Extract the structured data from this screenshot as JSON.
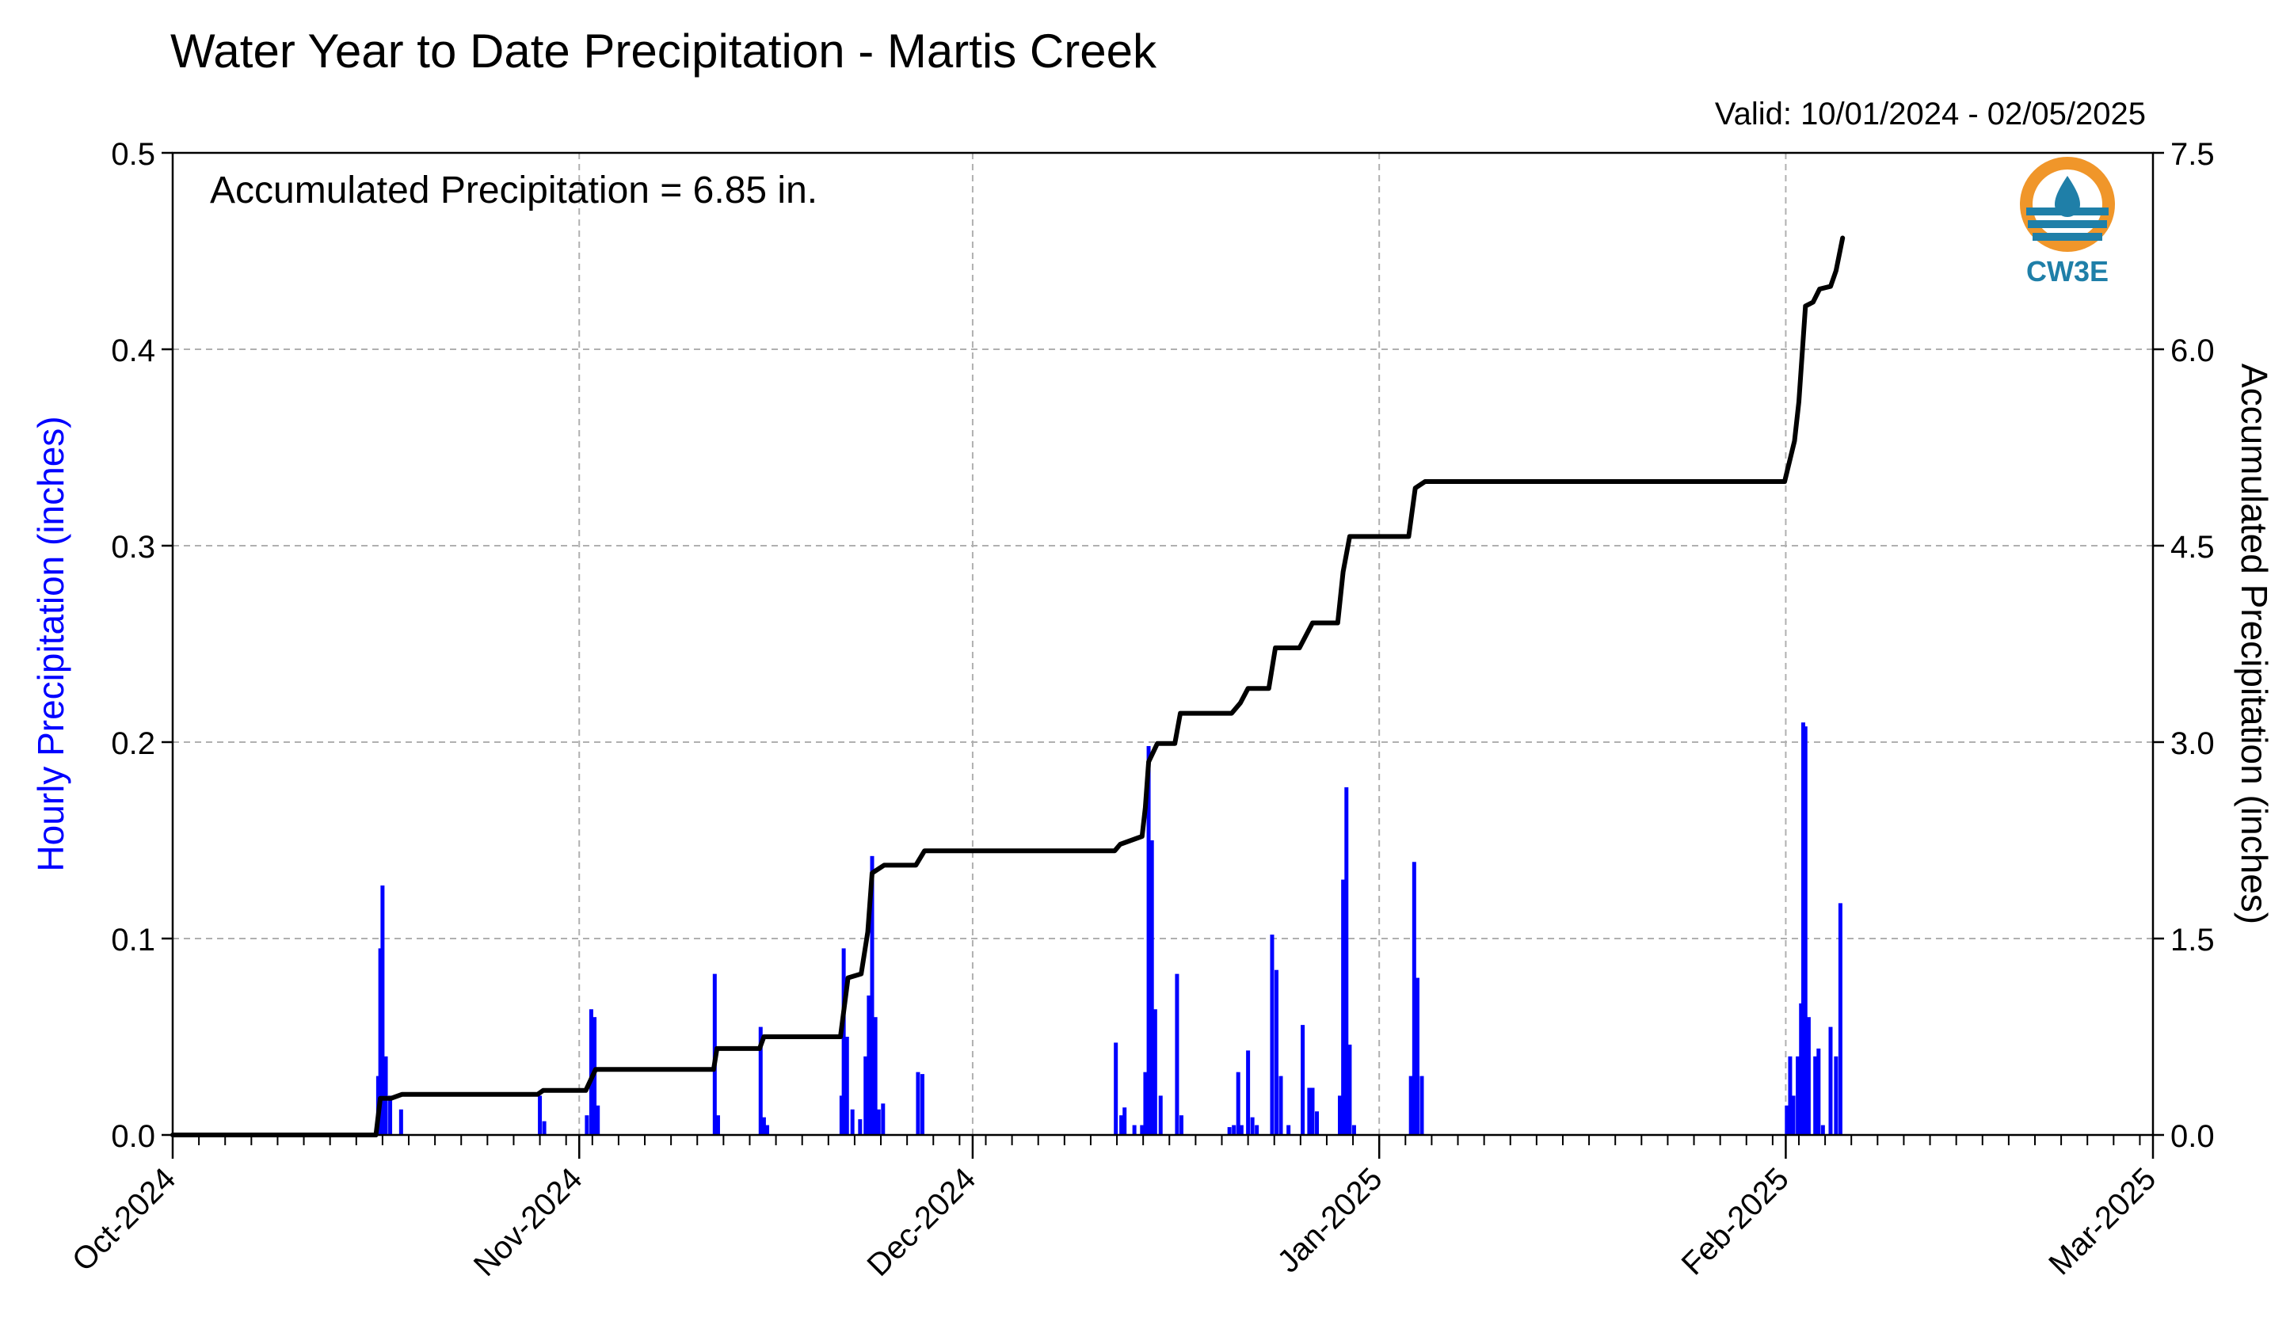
{
  "header": {
    "title": "Water Year to Date Precipitation - Martis Creek",
    "valid": "Valid: 10/01/2024 - 02/05/2025"
  },
  "annotation": "Accumulated Precipitation = 6.85 in.",
  "logo": {
    "text": "CW3E",
    "ring_color": "#f0962a",
    "water_color": "#1f7fa8"
  },
  "colors": {
    "hourly": "#0000ff",
    "accumulated": "#000000",
    "grid": "#b0b0b0"
  },
  "chart_data": {
    "type": "bar",
    "x_axis": {
      "type": "date",
      "range": [
        "2024-10-01",
        "2025-03-01"
      ],
      "tick_labels": [
        "Oct-2024",
        "Nov-2024",
        "Dec-2024",
        "Jan-2025",
        "Feb-2025",
        "Mar-2025"
      ],
      "tick_dates": [
        "2024-10-01",
        "2024-11-01",
        "2024-12-01",
        "2025-01-01",
        "2025-02-01",
        "2025-03-01"
      ],
      "minor_ticks": "every 2 days"
    },
    "y_left": {
      "label": "Hourly Precipitation (inches)",
      "range": [
        0,
        0.5
      ],
      "ticks": [
        "0.0",
        "0.1",
        "0.2",
        "0.3",
        "0.4",
        "0.5"
      ],
      "color": "#0000ff"
    },
    "y_right": {
      "label": "Accumulated Precipitation (inches)",
      "range": [
        0,
        7.5
      ],
      "ticks": [
        "0.0",
        "1.5",
        "3.0",
        "4.5",
        "6.0",
        "7.5"
      ]
    },
    "grid": true,
    "series": [
      {
        "kind": "hourly_bars",
        "axis": "left",
        "points": [
          [
            "2024-10-16 16:00",
            0.03
          ],
          [
            "2024-10-16 20:00",
            0.095
          ],
          [
            "2024-10-17 00:00",
            0.127
          ],
          [
            "2024-10-17 06:00",
            0.04
          ],
          [
            "2024-10-17 14:00",
            0.02
          ],
          [
            "2024-10-18 10:00",
            0.013
          ],
          [
            "2024-10-29 00:00",
            0.02
          ],
          [
            "2024-10-29 08:00",
            0.007
          ],
          [
            "2024-11-01 14:00",
            0.01
          ],
          [
            "2024-11-01 22:00",
            0.064
          ],
          [
            "2024-11-02 04:00",
            0.06
          ],
          [
            "2024-11-02 10:00",
            0.015
          ],
          [
            "2024-11-11 08:00",
            0.082
          ],
          [
            "2024-11-11 14:00",
            0.01
          ],
          [
            "2024-11-14 20:00",
            0.055
          ],
          [
            "2024-11-15 02:00",
            0.009
          ],
          [
            "2024-11-15 08:00",
            0.005
          ],
          [
            "2024-11-21 00:00",
            0.02
          ],
          [
            "2024-11-21 04:00",
            0.095
          ],
          [
            "2024-11-21 10:00",
            0.05
          ],
          [
            "2024-11-21 20:00",
            0.013
          ],
          [
            "2024-11-22 10:00",
            0.008
          ],
          [
            "2024-11-22 20:00",
            0.04
          ],
          [
            "2024-11-23 02:00",
            0.071
          ],
          [
            "2024-11-23 08:00",
            0.142
          ],
          [
            "2024-11-23 14:00",
            0.06
          ],
          [
            "2024-11-23 20:00",
            0.013
          ],
          [
            "2024-11-24 04:00",
            0.016
          ],
          [
            "2024-11-26 20:00",
            0.032
          ],
          [
            "2024-11-27 04:00",
            0.031
          ],
          [
            "2024-12-11 22:00",
            0.047
          ],
          [
            "2024-12-12 08:00",
            0.01
          ],
          [
            "2024-12-12 14:00",
            0.014
          ],
          [
            "2024-12-13 08:00",
            0.005
          ],
          [
            "2024-12-13 22:00",
            0.005
          ],
          [
            "2024-12-14 04:00",
            0.032
          ],
          [
            "2024-12-14 10:00",
            0.198
          ],
          [
            "2024-12-14 16:00",
            0.15
          ],
          [
            "2024-12-14 22:00",
            0.064
          ],
          [
            "2024-12-15 08:00",
            0.02
          ],
          [
            "2024-12-16 14:00",
            0.082
          ],
          [
            "2024-12-16 22:00",
            0.01
          ],
          [
            "2024-12-20 14:00",
            0.004
          ],
          [
            "2024-12-20 22:00",
            0.005
          ],
          [
            "2024-12-21 06:00",
            0.032
          ],
          [
            "2024-12-21 12:00",
            0.005
          ],
          [
            "2024-12-22 00:00",
            0.043
          ],
          [
            "2024-12-22 08:00",
            0.009
          ],
          [
            "2024-12-22 16:00",
            0.005
          ],
          [
            "2024-12-23 20:00",
            0.102
          ],
          [
            "2024-12-24 04:00",
            0.084
          ],
          [
            "2024-12-24 12:00",
            0.03
          ],
          [
            "2024-12-25 02:00",
            0.005
          ],
          [
            "2024-12-26 04:00",
            0.056
          ],
          [
            "2024-12-26 16:00",
            0.024
          ],
          [
            "2024-12-26 22:00",
            0.024
          ],
          [
            "2024-12-27 06:00",
            0.012
          ],
          [
            "2024-12-29 00:00",
            0.02
          ],
          [
            "2024-12-29 06:00",
            0.13
          ],
          [
            "2024-12-29 12:00",
            0.177
          ],
          [
            "2024-12-29 18:00",
            0.046
          ],
          [
            "2024-12-30 02:00",
            0.005
          ],
          [
            "2025-01-03 10:00",
            0.03
          ],
          [
            "2025-01-03 16:00",
            0.139
          ],
          [
            "2025-01-03 22:00",
            0.08
          ],
          [
            "2025-01-04 06:00",
            0.03
          ],
          [
            "2025-02-01 02:00",
            0.015
          ],
          [
            "2025-02-01 08:00",
            0.04
          ],
          [
            "2025-02-01 14:00",
            0.02
          ],
          [
            "2025-02-01 22:00",
            0.04
          ],
          [
            "2025-02-02 04:00",
            0.067
          ],
          [
            "2025-02-02 08:00",
            0.21
          ],
          [
            "2025-02-02 12:00",
            0.208
          ],
          [
            "2025-02-02 18:00",
            0.06
          ],
          [
            "2025-02-03 06:00",
            0.04
          ],
          [
            "2025-02-03 12:00",
            0.044
          ],
          [
            "2025-02-03 20:00",
            0.005
          ],
          [
            "2025-02-04 10:00",
            0.055
          ],
          [
            "2025-02-04 20:00",
            0.04
          ],
          [
            "2025-02-05 04:00",
            0.118
          ]
        ]
      },
      {
        "kind": "accumulated_line",
        "axis": "right",
        "points": [
          [
            "2024-10-01",
            0.0
          ],
          [
            "2024-10-16 12:00",
            0.0
          ],
          [
            "2024-10-16 20:00",
            0.28
          ],
          [
            "2024-10-17 16:00",
            0.28
          ],
          [
            "2024-10-18 12:00",
            0.31
          ],
          [
            "2024-10-28 20:00",
            0.31
          ],
          [
            "2024-10-29 06:00",
            0.34
          ],
          [
            "2024-11-01 12:00",
            0.34
          ],
          [
            "2024-11-02 06:00",
            0.5
          ],
          [
            "2024-11-11 06:00",
            0.5
          ],
          [
            "2024-11-11 12:00",
            0.66
          ],
          [
            "2024-11-14 18:00",
            0.66
          ],
          [
            "2024-11-15 02:00",
            0.75
          ],
          [
            "2024-11-20 22:00",
            0.75
          ],
          [
            "2024-11-21 12:00",
            1.2
          ],
          [
            "2024-11-22 12:00",
            1.23
          ],
          [
            "2024-11-23 00:00",
            1.55
          ],
          [
            "2024-11-23 08:00",
            2.0
          ],
          [
            "2024-11-24 06:00",
            2.06
          ],
          [
            "2024-11-26 16:00",
            2.06
          ],
          [
            "2024-11-27 08:00",
            2.17
          ],
          [
            "2024-12-11 20:00",
            2.17
          ],
          [
            "2024-12-12 06:00",
            2.22
          ],
          [
            "2024-12-13 22:00",
            2.28
          ],
          [
            "2024-12-14 04:00",
            2.5
          ],
          [
            "2024-12-14 10:00",
            2.85
          ],
          [
            "2024-12-15 02:00",
            2.99
          ],
          [
            "2024-12-16 10:00",
            2.99
          ],
          [
            "2024-12-16 20:00",
            3.22
          ],
          [
            "2024-12-20 18:00",
            3.22
          ],
          [
            "2024-12-21 10:00",
            3.3
          ],
          [
            "2024-12-22 00:00",
            3.41
          ],
          [
            "2024-12-23 14:00",
            3.41
          ],
          [
            "2024-12-24 02:00",
            3.72
          ],
          [
            "2024-12-25 22:00",
            3.72
          ],
          [
            "2024-12-26 22:00",
            3.91
          ],
          [
            "2024-12-28 20:00",
            3.91
          ],
          [
            "2024-12-29 06:00",
            4.3
          ],
          [
            "2024-12-29 18:00",
            4.57
          ],
          [
            "2025-01-03 06:00",
            4.57
          ],
          [
            "2025-01-03 18:00",
            4.94
          ],
          [
            "2025-01-04 12:00",
            4.99
          ],
          [
            "2025-01-31 22:00",
            4.99
          ],
          [
            "2025-02-01 16:00",
            5.3
          ],
          [
            "2025-02-02 00:00",
            5.6
          ],
          [
            "2025-02-02 12:00",
            6.33
          ],
          [
            "2025-02-03 02:00",
            6.36
          ],
          [
            "2025-02-03 14:00",
            6.46
          ],
          [
            "2025-02-04 10:00",
            6.48
          ],
          [
            "2025-02-04 20:00",
            6.6
          ],
          [
            "2025-02-05 08:00",
            6.85
          ]
        ]
      }
    ]
  }
}
